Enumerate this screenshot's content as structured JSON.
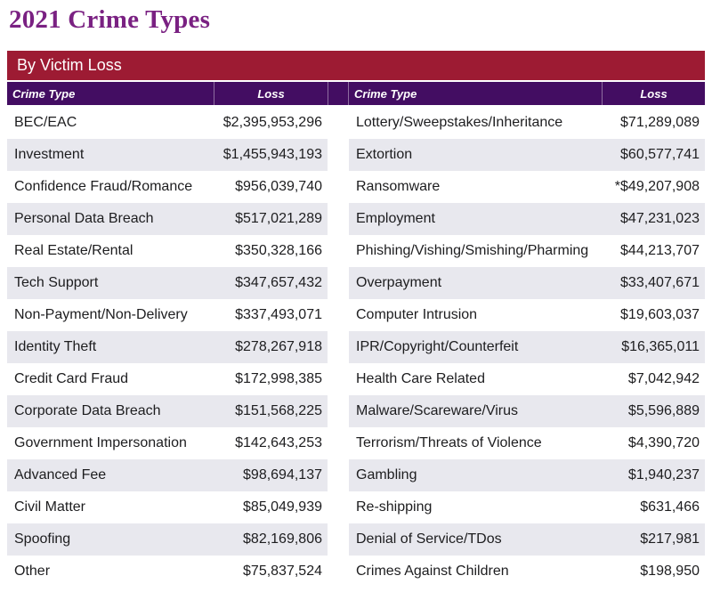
{
  "page": {
    "title": "2021 Crime Types",
    "section_label": "By Victim Loss"
  },
  "colors": {
    "title_text": "#7A2182",
    "section_band": "#9D1B33",
    "table_header": "#430D62",
    "row_alternate": "#E8E8EE",
    "body_text": "#1D1D1F"
  },
  "columns": {
    "crime_type": "Crime Type",
    "loss": "Loss"
  },
  "tables": {
    "left": {
      "rows": [
        {
          "type": "BEC/EAC",
          "loss": "$2,395,953,296"
        },
        {
          "type": "Investment",
          "loss": "$1,455,943,193"
        },
        {
          "type": "Confidence Fraud/Romance",
          "loss": "$956,039,740"
        },
        {
          "type": "Personal Data Breach",
          "loss": "$517,021,289"
        },
        {
          "type": "Real Estate/Rental",
          "loss": "$350,328,166"
        },
        {
          "type": "Tech Support",
          "loss": "$347,657,432"
        },
        {
          "type": "Non-Payment/Non-Delivery",
          "loss": "$337,493,071"
        },
        {
          "type": "Identity Theft",
          "loss": "$278,267,918"
        },
        {
          "type": "Credit Card Fraud",
          "loss": "$172,998,385"
        },
        {
          "type": "Corporate Data Breach",
          "loss": "$151,568,225"
        },
        {
          "type": "Government Impersonation",
          "loss": "$142,643,253"
        },
        {
          "type": "Advanced Fee",
          "loss": "$98,694,137"
        },
        {
          "type": "Civil Matter",
          "loss": "$85,049,939"
        },
        {
          "type": "Spoofing",
          "loss": "$82,169,806"
        },
        {
          "type": "Other",
          "loss": "$75,837,524"
        }
      ]
    },
    "right": {
      "rows": [
        {
          "type": "Lottery/Sweepstakes/Inheritance",
          "loss": "$71,289,089"
        },
        {
          "type": "Extortion",
          "loss": "$60,577,741"
        },
        {
          "type": "Ransomware",
          "loss": "*$49,207,908"
        },
        {
          "type": "Employment",
          "loss": "$47,231,023"
        },
        {
          "type": "Phishing/Vishing/Smishing/Pharming",
          "loss": "$44,213,707"
        },
        {
          "type": "Overpayment",
          "loss": "$33,407,671"
        },
        {
          "type": "Computer Intrusion",
          "loss": "$19,603,037"
        },
        {
          "type": "IPR/Copyright/Counterfeit",
          "loss": "$16,365,011"
        },
        {
          "type": "Health Care Related",
          "loss": "$7,042,942"
        },
        {
          "type": "Malware/Scareware/Virus",
          "loss": "$5,596,889"
        },
        {
          "type": "Terrorism/Threats of Violence",
          "loss": "$4,390,720"
        },
        {
          "type": "Gambling",
          "loss": "$1,940,237"
        },
        {
          "type": "Re-shipping",
          "loss": "$631,466"
        },
        {
          "type": "Denial of Service/TDos",
          "loss": "$217,981"
        },
        {
          "type": "Crimes Against Children",
          "loss": "$198,950"
        }
      ]
    }
  }
}
